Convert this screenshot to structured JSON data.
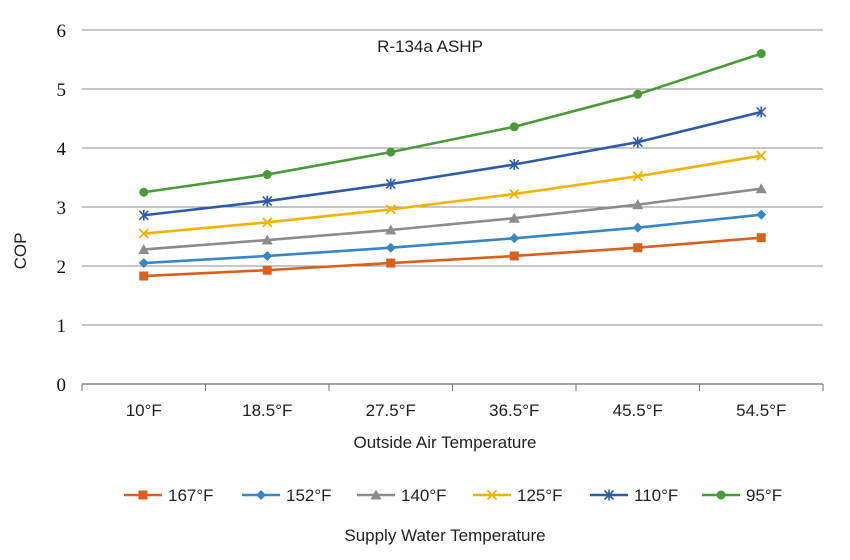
{
  "chart_data": {
    "type": "line",
    "title": "R-134a ASHP",
    "xlabel": "Outside Air Temperature",
    "ylabel": "COP",
    "legend_title": "Supply Water Temperature",
    "legend_position": "bottom",
    "grid": true,
    "ylim": [
      0,
      6
    ],
    "yticks": [
      "0",
      "1",
      "2",
      "3",
      "4",
      "5",
      "6"
    ],
    "categories": [
      "10°F",
      "18.5°F",
      "27.5°F",
      "36.5°F",
      "45.5°F",
      "54.5°F"
    ],
    "series": [
      {
        "name": "167°F",
        "color": "#d9601f",
        "marker": "square",
        "values": [
          1.83,
          1.93,
          2.05,
          2.17,
          2.31,
          2.48
        ]
      },
      {
        "name": "152°F",
        "color": "#3a86c4",
        "marker": "diamond",
        "values": [
          2.05,
          2.17,
          2.31,
          2.47,
          2.65,
          2.87
        ]
      },
      {
        "name": "140°F",
        "color": "#8c8c8c",
        "marker": "triangle",
        "values": [
          2.28,
          2.44,
          2.61,
          2.81,
          3.04,
          3.31
        ]
      },
      {
        "name": "125°F",
        "color": "#f2b300",
        "marker": "x",
        "values": [
          2.55,
          2.74,
          2.96,
          3.22,
          3.52,
          3.87
        ]
      },
      {
        "name": "110°F",
        "color": "#2f5aa8",
        "marker": "star",
        "values": [
          2.86,
          3.1,
          3.39,
          3.72,
          4.1,
          4.61
        ]
      },
      {
        "name": "95°F",
        "color": "#4a9a3a",
        "marker": "circle",
        "values": [
          3.25,
          3.55,
          3.93,
          4.36,
          4.91,
          5.6
        ]
      }
    ]
  }
}
